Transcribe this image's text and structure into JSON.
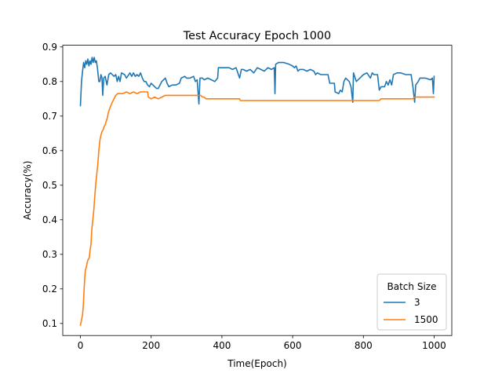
{
  "chart_data": {
    "type": "line",
    "title": "Test Accuracy Epoch 1000",
    "xlabel": "Time(Epoch)",
    "ylabel": "Accuracy(%)",
    "xlim": [
      -50,
      1050
    ],
    "ylim": [
      0.065,
      0.905
    ],
    "xticks": [
      0,
      200,
      400,
      600,
      800,
      1000
    ],
    "yticks": [
      0.1,
      0.2,
      0.3,
      0.4,
      0.5,
      0.6,
      0.7,
      0.8,
      0.9
    ],
    "grid": false,
    "legend": {
      "title": "Batch Size",
      "position": "lower-right"
    },
    "series": [
      {
        "name": "3",
        "color": "#1f77b4",
        "points": [
          [
            0,
            0.73
          ],
          [
            3,
            0.8
          ],
          [
            6,
            0.83
          ],
          [
            9,
            0.855
          ],
          [
            12,
            0.84
          ],
          [
            15,
            0.86
          ],
          [
            18,
            0.85
          ],
          [
            21,
            0.865
          ],
          [
            24,
            0.845
          ],
          [
            27,
            0.86
          ],
          [
            30,
            0.85
          ],
          [
            33,
            0.87
          ],
          [
            36,
            0.855
          ],
          [
            39,
            0.87
          ],
          [
            42,
            0.855
          ],
          [
            45,
            0.86
          ],
          [
            48,
            0.84
          ],
          [
            50,
            0.82
          ],
          [
            52,
            0.8
          ],
          [
            55,
            0.8
          ],
          [
            58,
            0.82
          ],
          [
            61,
            0.81
          ],
          [
            63,
            0.76
          ],
          [
            66,
            0.81
          ],
          [
            70,
            0.815
          ],
          [
            75,
            0.79
          ],
          [
            80,
            0.82
          ],
          [
            85,
            0.825
          ],
          [
            95,
            0.815
          ],
          [
            100,
            0.82
          ],
          [
            104,
            0.8
          ],
          [
            108,
            0.815
          ],
          [
            112,
            0.8
          ],
          [
            116,
            0.825
          ],
          [
            125,
            0.82
          ],
          [
            130,
            0.81
          ],
          [
            140,
            0.825
          ],
          [
            145,
            0.815
          ],
          [
            150,
            0.825
          ],
          [
            155,
            0.815
          ],
          [
            160,
            0.82
          ],
          [
            165,
            0.815
          ],
          [
            170,
            0.825
          ],
          [
            175,
            0.81
          ],
          [
            180,
            0.8
          ],
          [
            185,
            0.8
          ],
          [
            190,
            0.79
          ],
          [
            195,
            0.785
          ],
          [
            200,
            0.795
          ],
          [
            205,
            0.79
          ],
          [
            210,
            0.785
          ],
          [
            215,
            0.78
          ],
          [
            220,
            0.78
          ],
          [
            225,
            0.79
          ],
          [
            230,
            0.8
          ],
          [
            240,
            0.81
          ],
          [
            245,
            0.795
          ],
          [
            250,
            0.785
          ],
          [
            260,
            0.79
          ],
          [
            270,
            0.79
          ],
          [
            280,
            0.795
          ],
          [
            285,
            0.81
          ],
          [
            295,
            0.815
          ],
          [
            300,
            0.81
          ],
          [
            310,
            0.81
          ],
          [
            320,
            0.815
          ],
          [
            325,
            0.8
          ],
          [
            330,
            0.805
          ],
          [
            335,
            0.735
          ],
          [
            338,
            0.81
          ],
          [
            345,
            0.81
          ],
          [
            350,
            0.805
          ],
          [
            360,
            0.81
          ],
          [
            370,
            0.805
          ],
          [
            380,
            0.8
          ],
          [
            388,
            0.81
          ],
          [
            390,
            0.84
          ],
          [
            400,
            0.84
          ],
          [
            410,
            0.84
          ],
          [
            420,
            0.84
          ],
          [
            430,
            0.835
          ],
          [
            440,
            0.84
          ],
          [
            450,
            0.81
          ],
          [
            455,
            0.835
          ],
          [
            460,
            0.835
          ],
          [
            470,
            0.83
          ],
          [
            480,
            0.835
          ],
          [
            490,
            0.825
          ],
          [
            500,
            0.84
          ],
          [
            510,
            0.835
          ],
          [
            520,
            0.83
          ],
          [
            530,
            0.84
          ],
          [
            540,
            0.835
          ],
          [
            548,
            0.84
          ],
          [
            550,
            0.765
          ],
          [
            552,
            0.85
          ],
          [
            560,
            0.855
          ],
          [
            575,
            0.855
          ],
          [
            590,
            0.85
          ],
          [
            600,
            0.845
          ],
          [
            605,
            0.84
          ],
          [
            610,
            0.845
          ],
          [
            615,
            0.83
          ],
          [
            620,
            0.835
          ],
          [
            630,
            0.835
          ],
          [
            640,
            0.83
          ],
          [
            650,
            0.835
          ],
          [
            660,
            0.83
          ],
          [
            665,
            0.82
          ],
          [
            670,
            0.825
          ],
          [
            680,
            0.82
          ],
          [
            695,
            0.82
          ],
          [
            700,
            0.82
          ],
          [
            705,
            0.795
          ],
          [
            710,
            0.795
          ],
          [
            718,
            0.795
          ],
          [
            720,
            0.77
          ],
          [
            730,
            0.765
          ],
          [
            735,
            0.775
          ],
          [
            740,
            0.77
          ],
          [
            745,
            0.8
          ],
          [
            750,
            0.81
          ],
          [
            760,
            0.8
          ],
          [
            765,
            0.785
          ],
          [
            770,
            0.74
          ],
          [
            772,
            0.825
          ],
          [
            780,
            0.8
          ],
          [
            790,
            0.81
          ],
          [
            800,
            0.82
          ],
          [
            810,
            0.825
          ],
          [
            820,
            0.81
          ],
          [
            825,
            0.825
          ],
          [
            830,
            0.82
          ],
          [
            840,
            0.82
          ],
          [
            845,
            0.775
          ],
          [
            850,
            0.785
          ],
          [
            860,
            0.785
          ],
          [
            865,
            0.8
          ],
          [
            870,
            0.79
          ],
          [
            875,
            0.805
          ],
          [
            880,
            0.79
          ],
          [
            885,
            0.82
          ],
          [
            895,
            0.825
          ],
          [
            905,
            0.825
          ],
          [
            920,
            0.82
          ],
          [
            935,
            0.82
          ],
          [
            940,
            0.785
          ],
          [
            945,
            0.74
          ],
          [
            948,
            0.79
          ],
          [
            955,
            0.8
          ],
          [
            960,
            0.81
          ],
          [
            975,
            0.81
          ],
          [
            990,
            0.805
          ],
          [
            995,
            0.81
          ],
          [
            998,
            0.765
          ],
          [
            1000,
            0.815
          ]
        ]
      },
      {
        "name": "1500",
        "color": "#ff7f0e",
        "points": [
          [
            0,
            0.095
          ],
          [
            3,
            0.11
          ],
          [
            6,
            0.125
          ],
          [
            8,
            0.15
          ],
          [
            10,
            0.19
          ],
          [
            12,
            0.23
          ],
          [
            14,
            0.255
          ],
          [
            16,
            0.26
          ],
          [
            18,
            0.27
          ],
          [
            20,
            0.28
          ],
          [
            22,
            0.285
          ],
          [
            25,
            0.29
          ],
          [
            27,
            0.31
          ],
          [
            30,
            0.33
          ],
          [
            32,
            0.37
          ],
          [
            35,
            0.4
          ],
          [
            38,
            0.43
          ],
          [
            40,
            0.46
          ],
          [
            43,
            0.5
          ],
          [
            46,
            0.53
          ],
          [
            49,
            0.56
          ],
          [
            52,
            0.6
          ],
          [
            55,
            0.63
          ],
          [
            58,
            0.645
          ],
          [
            61,
            0.655
          ],
          [
            64,
            0.66
          ],
          [
            67,
            0.67
          ],
          [
            70,
            0.675
          ],
          [
            73,
            0.685
          ],
          [
            76,
            0.695
          ],
          [
            79,
            0.71
          ],
          [
            82,
            0.72
          ],
          [
            86,
            0.73
          ],
          [
            90,
            0.74
          ],
          [
            95,
            0.75
          ],
          [
            100,
            0.76
          ],
          [
            105,
            0.765
          ],
          [
            110,
            0.765
          ],
          [
            120,
            0.765
          ],
          [
            130,
            0.77
          ],
          [
            140,
            0.765
          ],
          [
            150,
            0.77
          ],
          [
            160,
            0.765
          ],
          [
            170,
            0.77
          ],
          [
            180,
            0.77
          ],
          [
            185,
            0.77
          ],
          [
            190,
            0.77
          ],
          [
            192,
            0.755
          ],
          [
            200,
            0.75
          ],
          [
            210,
            0.755
          ],
          [
            220,
            0.75
          ],
          [
            230,
            0.755
          ],
          [
            240,
            0.76
          ],
          [
            250,
            0.76
          ],
          [
            300,
            0.76
          ],
          [
            340,
            0.76
          ],
          [
            345,
            0.755
          ],
          [
            350,
            0.755
          ],
          [
            355,
            0.75
          ],
          [
            380,
            0.75
          ],
          [
            400,
            0.75
          ],
          [
            450,
            0.75
          ],
          [
            452,
            0.745
          ],
          [
            500,
            0.745
          ],
          [
            600,
            0.745
          ],
          [
            700,
            0.745
          ],
          [
            800,
            0.745
          ],
          [
            845,
            0.745
          ],
          [
            850,
            0.75
          ],
          [
            900,
            0.75
          ],
          [
            940,
            0.75
          ],
          [
            945,
            0.755
          ],
          [
            1000,
            0.755
          ]
        ]
      }
    ]
  }
}
